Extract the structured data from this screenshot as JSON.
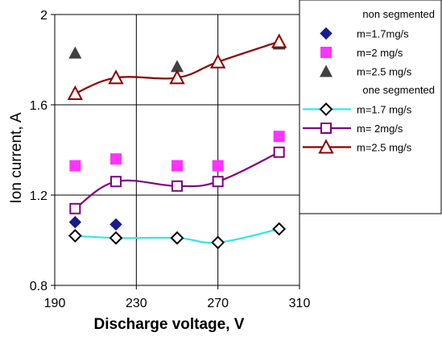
{
  "chart_data": {
    "type": "line",
    "xlabel": "Discharge voltage, V",
    "ylabel": "Ion current, A",
    "xlim": [
      190,
      310
    ],
    "ylim": [
      0.8,
      2.0
    ],
    "xticks": [
      "190",
      "230",
      "270",
      "310"
    ],
    "yticks": [
      "0.8",
      "1.2",
      "1.6",
      "2"
    ],
    "grid": true,
    "legend_position": "right",
    "legend_groups": [
      "non segmented",
      "one segmented"
    ],
    "series": [
      {
        "name": "m=1.7mg/s",
        "group": "non segmented",
        "style": "markers",
        "marker": "diamond-filled",
        "color": "#1a1a8c",
        "x": [
          200,
          220
        ],
        "y": [
          1.08,
          1.07
        ]
      },
      {
        "name": "m=2 mg/s",
        "group": "non segmented",
        "style": "markers",
        "marker": "square-filled",
        "color": "#ff33ff",
        "x": [
          200,
          220,
          250,
          270,
          300
        ],
        "y": [
          1.33,
          1.36,
          1.33,
          1.33,
          1.46
        ]
      },
      {
        "name": "m=2.5 mg/s",
        "group": "non segmented",
        "style": "markers",
        "marker": "triangle-filled",
        "color": "#404040",
        "x": [
          200,
          250,
          300
        ],
        "y": [
          1.83,
          1.77,
          1.87
        ]
      },
      {
        "name": "m=1.7 mg/s",
        "group": "one segmented",
        "style": "line-markers",
        "marker": "diamond-open",
        "color": "#33e6e6",
        "marker_color": "#000000",
        "x": [
          200,
          220,
          250,
          270,
          300
        ],
        "y": [
          1.02,
          1.01,
          1.01,
          0.99,
          1.05
        ]
      },
      {
        "name": "m= 2mg/s",
        "group": "one segmented",
        "style": "line-markers",
        "marker": "square-open",
        "color": "#800080",
        "x": [
          200,
          220,
          250,
          270,
          300
        ],
        "y": [
          1.14,
          1.26,
          1.24,
          1.26,
          1.39
        ]
      },
      {
        "name": "m=2.5 mg/s",
        "group": "one segmented",
        "style": "line-markers",
        "marker": "triangle-open",
        "color": "#8b0000",
        "x": [
          200,
          220,
          250,
          270,
          300
        ],
        "y": [
          1.65,
          1.72,
          1.72,
          1.79,
          1.88
        ]
      }
    ]
  }
}
